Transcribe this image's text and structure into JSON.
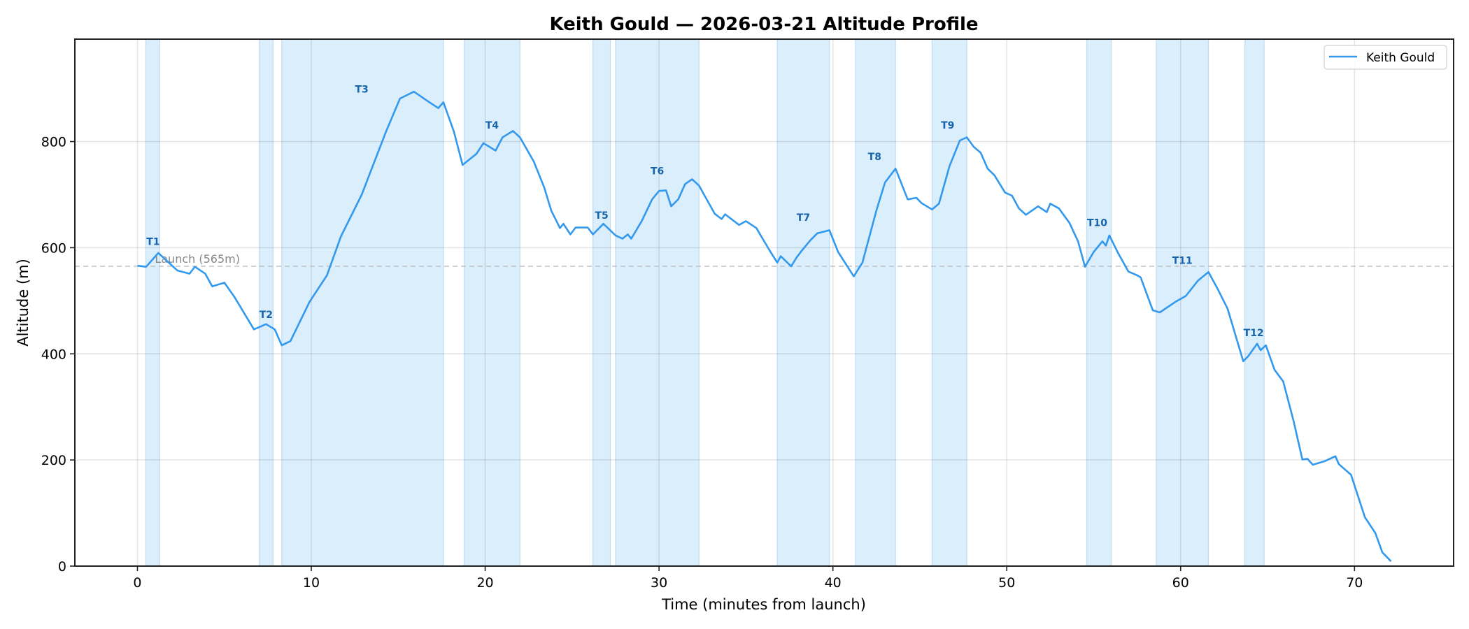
{
  "chart_data": {
    "type": "line",
    "title": "Keith Gould — 2026-03-21 Altitude Profile",
    "xlabel": "Time (minutes from launch)",
    "ylabel": "Altitude (m)",
    "xlim": [
      -3.6,
      75.7
    ],
    "ylim": [
      0,
      993
    ],
    "xticks": [
      0,
      10,
      20,
      30,
      40,
      50,
      60,
      70
    ],
    "yticks": [
      0,
      200,
      400,
      600,
      800
    ],
    "grid": true,
    "legend": {
      "position": "upper right",
      "entries": [
        "Keith Gould"
      ]
    },
    "colors": {
      "line": "#3399ee",
      "span_fill": "#dbeefb",
      "span_edge": "#bcdcf5",
      "segment_label": "#1864ab",
      "launch_line": "#bbbbbb",
      "launch_text": "#888888",
      "grid": "#e6e6e6"
    },
    "launch": {
      "altitude": 565,
      "label": "Launch (565m)",
      "label_x": 1.0
    },
    "series": [
      {
        "name": "Keith Gould",
        "x": [
          0,
          0.5,
          1.2,
          1.6,
          2.3,
          3.0,
          3.3,
          3.9,
          4.3,
          5.0,
          5.6,
          6.7,
          7.4,
          7.9,
          8.3,
          8.8,
          9.9,
          10.9,
          11.7,
          12.9,
          14.3,
          15.1,
          15.9,
          16.7,
          17.3,
          17.6,
          18.2,
          18.7,
          19.5,
          19.9,
          20.6,
          21.0,
          21.6,
          22.0,
          22.8,
          23.4,
          23.8,
          24.3,
          24.5,
          24.9,
          25.2,
          25.9,
          26.2,
          26.8,
          27.5,
          27.9,
          28.2,
          28.4,
          29.0,
          29.6,
          30.0,
          30.4,
          30.7,
          31.1,
          31.5,
          31.9,
          32.3,
          33.2,
          33.6,
          33.8,
          34.6,
          35.0,
          35.6,
          36.3,
          36.8,
          37.0,
          37.6,
          37.9,
          38.2,
          38.7,
          39.1,
          39.8,
          40.3,
          41.2,
          41.7,
          42.5,
          43.0,
          43.6,
          44.3,
          44.8,
          45.1,
          45.7,
          46.1,
          46.7,
          47.3,
          47.7,
          48.1,
          48.5,
          48.9,
          49.3,
          49.9,
          50.3,
          50.7,
          51.1,
          51.8,
          52.3,
          52.5,
          53.0,
          53.6,
          54.1,
          54.5,
          55.0,
          55.5,
          55.7,
          55.9,
          56.4,
          57.0,
          57.5,
          57.7,
          58.4,
          58.8,
          59.7,
          60.3,
          61.0,
          61.6,
          62.1,
          62.7,
          63.6,
          63.9,
          64.4,
          64.6,
          64.9,
          65.4,
          65.9,
          66.5,
          67.0,
          67.3,
          67.6,
          68.3,
          68.9,
          69.1,
          69.8,
          70.2,
          70.6,
          71.2,
          71.6,
          72.1
        ],
        "y": [
          566,
          564,
          590,
          578,
          557,
          551,
          564,
          551,
          527,
          534,
          506,
          446,
          456,
          446,
          416,
          424,
          498,
          548,
          621,
          700,
          819,
          881,
          894,
          876,
          863,
          874,
          819,
          756,
          777,
          797,
          783,
          808,
          820,
          808,
          762,
          713,
          670,
          637,
          645,
          625,
          638,
          638,
          625,
          645,
          623,
          617,
          625,
          617,
          650,
          691,
          707,
          708,
          678,
          691,
          720,
          729,
          717,
          664,
          654,
          663,
          643,
          650,
          637,
          598,
          572,
          584,
          565,
          581,
          594,
          614,
          627,
          633,
          592,
          546,
          572,
          670,
          723,
          749,
          691,
          694,
          684,
          672,
          683,
          753,
          802,
          808,
          790,
          779,
          749,
          736,
          704,
          698,
          674,
          662,
          678,
          667,
          683,
          674,
          647,
          612,
          564,
          592,
          612,
          604,
          623,
          590,
          555,
          548,
          544,
          482,
          478,
          498,
          509,
          538,
          554,
          524,
          485,
          386,
          396,
          419,
          407,
          416,
          370,
          348,
          273,
          201,
          202,
          191,
          198,
          207,
          192,
          172,
          132,
          92,
          62,
          26,
          9
        ]
      }
    ],
    "segments": [
      {
        "label": "T1",
        "start": 0.48,
        "end": 1.28,
        "label_x": 0.9,
        "label_y": 612
      },
      {
        "label": "T2",
        "start": 7.0,
        "end": 7.8,
        "label_x": 7.4,
        "label_y": 474
      },
      {
        "label": "T3",
        "start": 8.3,
        "end": 17.6,
        "label_x": 12.9,
        "label_y": 899
      },
      {
        "label": "T4",
        "start": 18.8,
        "end": 22.0,
        "label_x": 20.4,
        "label_y": 831
      },
      {
        "label": "T5",
        "start": 26.2,
        "end": 27.2,
        "label_x": 26.7,
        "label_y": 661
      },
      {
        "label": "T6",
        "start": 27.5,
        "end": 32.3,
        "label_x": 29.9,
        "label_y": 745
      },
      {
        "label": "T7",
        "start": 36.8,
        "end": 39.8,
        "label_x": 38.3,
        "label_y": 657
      },
      {
        "label": "T8",
        "start": 41.3,
        "end": 43.6,
        "label_x": 42.4,
        "label_y": 772
      },
      {
        "label": "T9",
        "start": 45.7,
        "end": 47.7,
        "label_x": 46.6,
        "label_y": 831
      },
      {
        "label": "T10",
        "start": 54.6,
        "end": 56.0,
        "label_x": 55.2,
        "label_y": 647
      },
      {
        "label": "T11",
        "start": 58.6,
        "end": 61.6,
        "label_x": 60.1,
        "label_y": 576
      },
      {
        "label": "T12",
        "start": 63.7,
        "end": 64.8,
        "label_x": 64.2,
        "label_y": 440
      }
    ]
  }
}
